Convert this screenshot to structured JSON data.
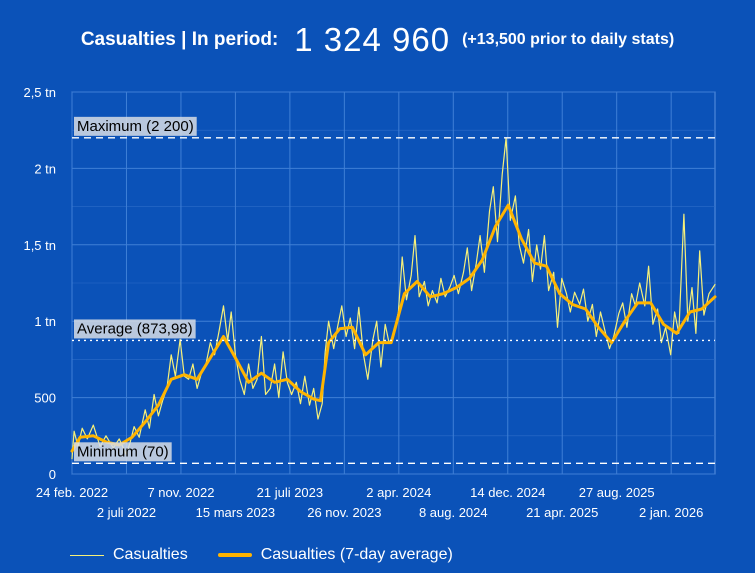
{
  "header": {
    "label": "Casualties | In period:",
    "total": "1 324 960",
    "note": "(+13,500 prior to daily stats)"
  },
  "colors": {
    "background": "#0b52b8",
    "raw_series": "#f6f07a",
    "avg_series": "#ffb400",
    "grid": "#3f7fd6",
    "reference": "#ffffff"
  },
  "chart_data": {
    "type": "line",
    "y_ticks": [
      {
        "value": 0,
        "label": "0"
      },
      {
        "value": 500,
        "label": "500"
      },
      {
        "value": 1000,
        "label": "1 tn"
      },
      {
        "value": 1500,
        "label": "1,5 tn"
      },
      {
        "value": 2000,
        "label": "2 tn"
      },
      {
        "value": 2500,
        "label": "2,5 tn"
      }
    ],
    "ylim": [
      0,
      2500
    ],
    "xlim": [
      "2022-02-24",
      "2026-04-15"
    ],
    "x_ticks": [
      {
        "date": "2022-02-24",
        "label": "24 feb. 2022",
        "row": 1
      },
      {
        "date": "2022-07-02",
        "label": "2 juli 2022",
        "row": 2
      },
      {
        "date": "2022-11-07",
        "label": "7 nov. 2022",
        "row": 1
      },
      {
        "date": "2023-03-15",
        "label": "15 mars 2023",
        "row": 2
      },
      {
        "date": "2023-07-21",
        "label": "21 juli 2023",
        "row": 1
      },
      {
        "date": "2023-11-26",
        "label": "26 nov. 2023",
        "row": 2
      },
      {
        "date": "2024-04-02",
        "label": "2 apr. 2024",
        "row": 1
      },
      {
        "date": "2024-08-08",
        "label": "8 aug. 2024",
        "row": 2
      },
      {
        "date": "2024-12-14",
        "label": "14 dec. 2024",
        "row": 1
      },
      {
        "date": "2025-04-21",
        "label": "21 apr. 2025",
        "row": 2
      },
      {
        "date": "2025-08-27",
        "label": "27 aug. 2025",
        "row": 1
      },
      {
        "date": "2026-01-02",
        "label": "2 jan. 2026",
        "row": 2
      }
    ],
    "reference_lines": [
      {
        "value": 2200,
        "label": "Maximum (2 200)",
        "style": "dashed"
      },
      {
        "value": 873.98,
        "label": "Average (873,98)",
        "style": "dotted"
      },
      {
        "value": 70,
        "label": "Minimum (70)",
        "style": "dashed"
      }
    ],
    "grid": true,
    "legend_position": "bottom",
    "series": [
      {
        "name": "Casualties",
        "style": "thin-line",
        "points": [
          [
            "2022-02-24",
            100
          ],
          [
            "2022-03-01",
            280
          ],
          [
            "2022-03-10",
            180
          ],
          [
            "2022-03-20",
            300
          ],
          [
            "2022-04-01",
            230
          ],
          [
            "2022-04-15",
            320
          ],
          [
            "2022-05-01",
            180
          ],
          [
            "2022-05-15",
            250
          ],
          [
            "2022-06-01",
            170
          ],
          [
            "2022-06-15",
            230
          ],
          [
            "2022-07-01",
            130
          ],
          [
            "2022-07-10",
            200
          ],
          [
            "2022-07-20",
            310
          ],
          [
            "2022-08-01",
            240
          ],
          [
            "2022-08-15",
            420
          ],
          [
            "2022-08-25",
            300
          ],
          [
            "2022-09-05",
            520
          ],
          [
            "2022-09-15",
            380
          ],
          [
            "2022-09-25",
            480
          ],
          [
            "2022-10-05",
            560
          ],
          [
            "2022-10-15",
            780
          ],
          [
            "2022-10-25",
            640
          ],
          [
            "2022-11-05",
            880
          ],
          [
            "2022-11-15",
            640
          ],
          [
            "2022-11-25",
            620
          ],
          [
            "2022-12-05",
            720
          ],
          [
            "2022-12-15",
            560
          ],
          [
            "2022-12-25",
            660
          ],
          [
            "2023-01-05",
            720
          ],
          [
            "2023-01-15",
            860
          ],
          [
            "2023-01-25",
            780
          ],
          [
            "2023-02-05",
            940
          ],
          [
            "2023-02-15",
            1100
          ],
          [
            "2023-02-25",
            870
          ],
          [
            "2023-03-05",
            1060
          ],
          [
            "2023-03-15",
            780
          ],
          [
            "2023-03-25",
            620
          ],
          [
            "2023-04-05",
            520
          ],
          [
            "2023-04-15",
            720
          ],
          [
            "2023-04-25",
            560
          ],
          [
            "2023-05-05",
            620
          ],
          [
            "2023-05-15",
            900
          ],
          [
            "2023-05-25",
            520
          ],
          [
            "2023-06-05",
            560
          ],
          [
            "2023-06-15",
            720
          ],
          [
            "2023-06-25",
            500
          ],
          [
            "2023-07-05",
            800
          ],
          [
            "2023-07-15",
            600
          ],
          [
            "2023-07-25",
            520
          ],
          [
            "2023-08-05",
            600
          ],
          [
            "2023-08-15",
            460
          ],
          [
            "2023-08-25",
            640
          ],
          [
            "2023-09-05",
            450
          ],
          [
            "2023-09-15",
            560
          ],
          [
            "2023-09-25",
            360
          ],
          [
            "2023-10-05",
            460
          ],
          [
            "2023-10-12",
            800
          ],
          [
            "2023-10-20",
            1000
          ],
          [
            "2023-11-01",
            820
          ],
          [
            "2023-11-10",
            960
          ],
          [
            "2023-11-20",
            1100
          ],
          [
            "2023-11-30",
            900
          ],
          [
            "2023-12-10",
            1020
          ],
          [
            "2023-12-20",
            820
          ],
          [
            "2023-12-30",
            1090
          ],
          [
            "2024-01-10",
            780
          ],
          [
            "2024-01-20",
            620
          ],
          [
            "2024-02-01",
            880
          ],
          [
            "2024-02-10",
            1000
          ],
          [
            "2024-02-20",
            700
          ],
          [
            "2024-03-01",
            980
          ],
          [
            "2024-03-10",
            860
          ],
          [
            "2024-03-20",
            900
          ],
          [
            "2024-04-01",
            1060
          ],
          [
            "2024-04-10",
            1420
          ],
          [
            "2024-04-20",
            1140
          ],
          [
            "2024-05-01",
            1300
          ],
          [
            "2024-05-10",
            1560
          ],
          [
            "2024-05-20",
            1160
          ],
          [
            "2024-06-01",
            1260
          ],
          [
            "2024-06-10",
            1100
          ],
          [
            "2024-06-20",
            1200
          ],
          [
            "2024-07-01",
            1120
          ],
          [
            "2024-07-10",
            1280
          ],
          [
            "2024-07-20",
            1160
          ],
          [
            "2024-08-01",
            1230
          ],
          [
            "2024-08-10",
            1300
          ],
          [
            "2024-08-20",
            1180
          ],
          [
            "2024-09-01",
            1320
          ],
          [
            "2024-09-10",
            1480
          ],
          [
            "2024-09-20",
            1200
          ],
          [
            "2024-10-01",
            1380
          ],
          [
            "2024-10-10",
            1560
          ],
          [
            "2024-10-20",
            1320
          ],
          [
            "2024-11-01",
            1720
          ],
          [
            "2024-11-10",
            1880
          ],
          [
            "2024-11-20",
            1520
          ],
          [
            "2024-12-01",
            1960
          ],
          [
            "2024-12-10",
            2200
          ],
          [
            "2024-12-20",
            1660
          ],
          [
            "2025-01-01",
            1820
          ],
          [
            "2025-01-10",
            1500
          ],
          [
            "2025-01-20",
            1380
          ],
          [
            "2025-02-01",
            1600
          ],
          [
            "2025-02-10",
            1260
          ],
          [
            "2025-02-20",
            1500
          ],
          [
            "2025-03-01",
            1340
          ],
          [
            "2025-03-10",
            1560
          ],
          [
            "2025-03-20",
            1200
          ],
          [
            "2025-04-01",
            1320
          ],
          [
            "2025-04-10",
            960
          ],
          [
            "2025-04-20",
            1280
          ],
          [
            "2025-05-01",
            1180
          ],
          [
            "2025-05-10",
            1060
          ],
          [
            "2025-05-20",
            1190
          ],
          [
            "2025-06-01",
            1110
          ],
          [
            "2025-06-10",
            1210
          ],
          [
            "2025-06-20",
            1000
          ],
          [
            "2025-07-01",
            1110
          ],
          [
            "2025-07-10",
            900
          ],
          [
            "2025-07-20",
            1060
          ],
          [
            "2025-08-01",
            920
          ],
          [
            "2025-08-10",
            820
          ],
          [
            "2025-08-20",
            900
          ],
          [
            "2025-09-01",
            1050
          ],
          [
            "2025-09-10",
            1120
          ],
          [
            "2025-09-20",
            960
          ],
          [
            "2025-10-01",
            1180
          ],
          [
            "2025-10-10",
            1100
          ],
          [
            "2025-10-20",
            1250
          ],
          [
            "2025-11-01",
            1100
          ],
          [
            "2025-11-10",
            1360
          ],
          [
            "2025-11-20",
            980
          ],
          [
            "2025-12-01",
            1080
          ],
          [
            "2025-12-10",
            860
          ],
          [
            "2025-12-20",
            960
          ],
          [
            "2026-01-01",
            780
          ],
          [
            "2026-01-10",
            1060
          ],
          [
            "2026-01-20",
            920
          ],
          [
            "2026-02-01",
            1700
          ],
          [
            "2026-02-10",
            1000
          ],
          [
            "2026-02-20",
            1220
          ],
          [
            "2026-03-01",
            920
          ],
          [
            "2026-03-10",
            1460
          ],
          [
            "2026-03-20",
            1040
          ],
          [
            "2026-04-01",
            1180
          ],
          [
            "2026-04-15",
            1240
          ]
        ]
      },
      {
        "name": "Casualties (7-day average)",
        "style": "thick-line",
        "points": [
          [
            "2022-02-24",
            150
          ],
          [
            "2022-03-15",
            240
          ],
          [
            "2022-04-15",
            250
          ],
          [
            "2022-05-15",
            210
          ],
          [
            "2022-06-15",
            190
          ],
          [
            "2022-07-15",
            240
          ],
          [
            "2022-08-15",
            340
          ],
          [
            "2022-09-15",
            450
          ],
          [
            "2022-10-15",
            620
          ],
          [
            "2022-11-15",
            650
          ],
          [
            "2022-12-15",
            620
          ],
          [
            "2023-01-15",
            760
          ],
          [
            "2023-02-15",
            900
          ],
          [
            "2023-03-15",
            760
          ],
          [
            "2023-04-15",
            600
          ],
          [
            "2023-05-15",
            660
          ],
          [
            "2023-06-15",
            600
          ],
          [
            "2023-07-15",
            620
          ],
          [
            "2023-08-15",
            540
          ],
          [
            "2023-09-15",
            490
          ],
          [
            "2023-10-01",
            480
          ],
          [
            "2023-10-20",
            860
          ],
          [
            "2023-11-15",
            950
          ],
          [
            "2023-12-15",
            960
          ],
          [
            "2024-01-15",
            780
          ],
          [
            "2024-02-15",
            860
          ],
          [
            "2024-03-15",
            860
          ],
          [
            "2024-04-15",
            1180
          ],
          [
            "2024-05-15",
            1260
          ],
          [
            "2024-06-15",
            1160
          ],
          [
            "2024-07-15",
            1180
          ],
          [
            "2024-08-15",
            1220
          ],
          [
            "2024-09-15",
            1280
          ],
          [
            "2024-10-15",
            1400
          ],
          [
            "2024-11-15",
            1620
          ],
          [
            "2024-12-15",
            1760
          ],
          [
            "2025-01-15",
            1540
          ],
          [
            "2025-02-15",
            1380
          ],
          [
            "2025-03-15",
            1360
          ],
          [
            "2025-04-15",
            1180
          ],
          [
            "2025-05-15",
            1110
          ],
          [
            "2025-06-15",
            1080
          ],
          [
            "2025-07-15",
            960
          ],
          [
            "2025-08-15",
            860
          ],
          [
            "2025-09-15",
            1000
          ],
          [
            "2025-10-15",
            1120
          ],
          [
            "2025-11-15",
            1120
          ],
          [
            "2025-12-15",
            980
          ],
          [
            "2026-01-15",
            920
          ],
          [
            "2026-02-15",
            1060
          ],
          [
            "2026-03-15",
            1080
          ],
          [
            "2026-04-15",
            1160
          ]
        ]
      }
    ]
  },
  "legend": {
    "raw_label": "Casualties",
    "avg_label": "Casualties (7-day average)"
  }
}
